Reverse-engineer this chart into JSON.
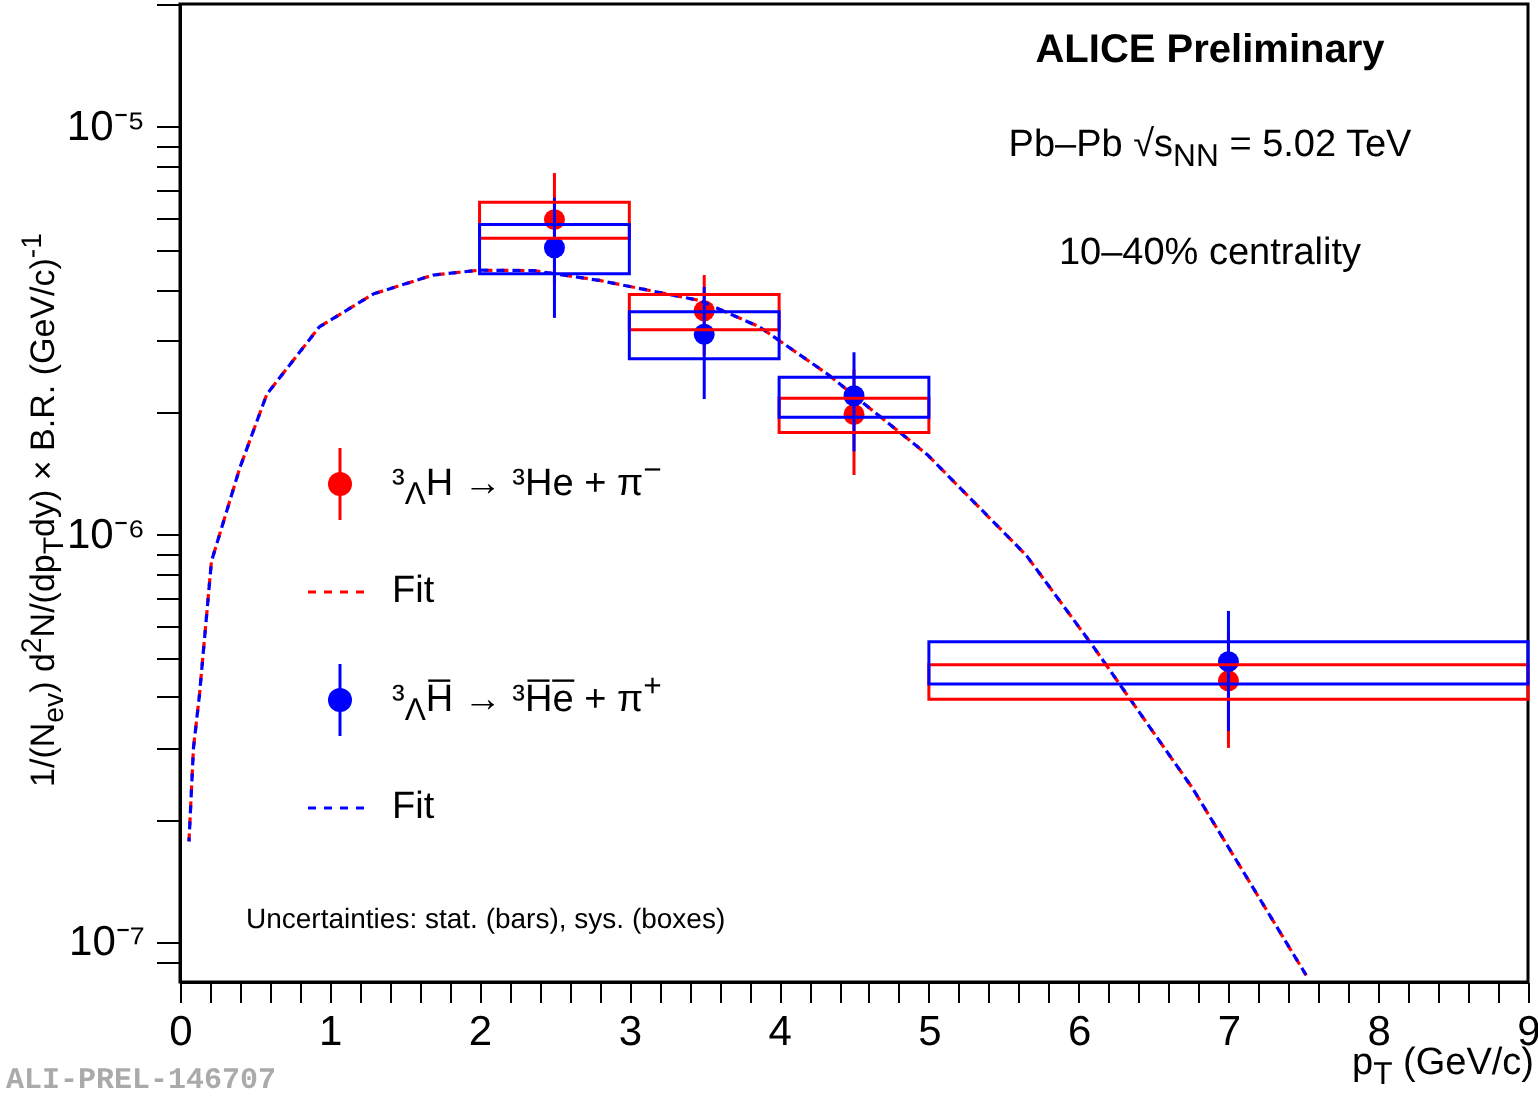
{
  "chart_data": {
    "type": "scatter",
    "xlabel": "p$_{T}$ (GeV/c)",
    "ylabel": "1/(N$_{ev}$) d$^{2}$N/(dp$_{T}$dy) × B.R. (GeV/c)$^{-1}$",
    "log": "y",
    "grid": false,
    "legend": "left",
    "xlim": [
      0,
      9
    ],
    "ylim": [
      8e-08,
      2e-05
    ],
    "xticks": [
      0,
      {
        "value": 0.2,
        "label": null
      },
      {
        "value": 0.4,
        "label": null
      },
      {
        "value": 0.6,
        "label": null
      },
      {
        "value": 0.8,
        "label": null
      },
      1,
      {
        "value": 1.2,
        "label": null
      },
      {
        "value": 1.4,
        "label": null
      },
      {
        "value": 1.6,
        "label": null
      },
      {
        "value": 1.8,
        "label": null
      },
      2,
      {
        "value": 2.2,
        "label": null
      },
      {
        "value": 2.4,
        "label": null
      },
      {
        "value": 2.6,
        "label": null
      },
      {
        "value": 2.8,
        "label": null
      },
      3,
      {
        "value": 3.2,
        "label": null
      },
      {
        "value": 3.4,
        "label": null
      },
      {
        "value": 3.6,
        "label": null
      },
      {
        "value": 3.8,
        "label": null
      },
      4,
      {
        "value": 4.2,
        "label": null
      },
      {
        "value": 4.4,
        "label": null
      },
      {
        "value": 4.6,
        "label": null
      },
      {
        "value": 4.8,
        "label": null
      },
      5,
      {
        "value": 5.2,
        "label": null
      },
      {
        "value": 5.4,
        "label": null
      },
      {
        "value": 5.6,
        "label": null
      },
      {
        "value": 5.8,
        "label": null
      },
      6,
      {
        "value": 6.2,
        "label": null
      },
      {
        "value": 6.4,
        "label": null
      },
      {
        "value": 6.6,
        "label": null
      },
      {
        "value": 6.8,
        "label": null
      },
      7,
      {
        "value": 7.2,
        "label": null
      },
      {
        "value": 7.4,
        "label": null
      },
      {
        "value": 7.6,
        "label": null
      },
      {
        "value": 7.8,
        "label": null
      },
      8,
      {
        "value": 8.2,
        "label": null
      },
      {
        "value": 8.4,
        "label": null
      },
      {
        "value": 8.6,
        "label": null
      },
      {
        "value": 8.8,
        "label": null
      },
      9
    ],
    "yticks": [
      {
        "value": 9e-08,
        "label": null
      },
      {
        "value": 1e-07,
        "label": "10⁻⁷"
      },
      {
        "value": 2e-07,
        "label": null
      },
      {
        "value": 3e-07,
        "label": null
      },
      {
        "value": 4e-07,
        "label": null
      },
      {
        "value": 5e-07,
        "label": null
      },
      {
        "value": 6e-07,
        "label": null
      },
      {
        "value": 7e-07,
        "label": null
      },
      {
        "value": 8e-07,
        "label": null
      },
      {
        "value": 9e-07,
        "label": null
      },
      {
        "value": 1e-06,
        "label": "10⁻⁶"
      },
      {
        "value": 2e-06,
        "label": null
      },
      {
        "value": 3e-06,
        "label": null
      },
      {
        "value": 4e-06,
        "label": null
      },
      {
        "value": 5e-06,
        "label": null
      },
      {
        "value": 6e-06,
        "label": null
      },
      {
        "value": 7e-06,
        "label": null
      },
      {
        "value": 8e-06,
        "label": null
      },
      {
        "value": 9e-06,
        "label": null
      },
      {
        "value": 1e-05,
        "label": "10⁻⁵"
      },
      {
        "value": 2e-05,
        "label": null
      }
    ],
    "annotations": [
      "ALICE Preliminary",
      "Pb–Pb √s$_{NN}$ = 5.02 TeV",
      "10–40% centrality",
      "Uncertainties: stat. (bars), sys. (boxes)",
      "ALI-PREL-146707"
    ],
    "series": [
      {
        "name": "³$_{Λ}$H → ³He + π$^{−}$",
        "marker": "circle",
        "color": "#ff0000",
        "x": [
          2.5,
          3.5,
          4.5,
          7
        ],
        "values": [
          5.92e-06,
          3.54e-06,
          1.97e-06,
          4.38e-07
        ],
        "errors": [
          [
            4.1e-06,
            7.7e-06
          ],
          [
            2.75e-06,
            4.33e-06
          ],
          [
            1.4e-06,
            2.54e-06
          ],
          [
            3e-07,
            5.8e-07
          ]
        ]
      },
      {
        "name": "Fit",
        "type": "line",
        "color": "#ff0000",
        "line_style": "dashed",
        "x": [
          0.06,
          0.09,
          0.13,
          0.21,
          0.4,
          0.58,
          0.93,
          1.29,
          1.69,
          2.0,
          2.36,
          2.8,
          3.47,
          3.87,
          4.32,
          4.99,
          5.65,
          6.1,
          6.76,
          7.52
        ],
        "values": [
          1.77e-07,
          3e-07,
          4.05e-07,
          8.6e-07,
          1.46e-06,
          2.21e-06,
          3.23e-06,
          3.89e-06,
          4.33e-06,
          4.45e-06,
          4.44e-06,
          4.2e-06,
          3.75e-06,
          3.23e-06,
          2.48e-06,
          1.57e-06,
          8.9e-07,
          5.3e-07,
          2.39e-07,
          8.3e-08
        ]
      },
      {
        "name": "³$_{Λ}$H̅ → ³H̅e̅ + π$^{+}$",
        "marker": "circle",
        "color": "#0000ff",
        "x": [
          2.5,
          3.5,
          4.5,
          7
        ],
        "values": [
          5.05e-06,
          3.1e-06,
          2.19e-06,
          4.88e-07
        ],
        "errors": [
          [
            3.4e-06,
            6.7e-06
          ],
          [
            2.15e-06,
            4.05e-06
          ],
          [
            1.6e-06,
            2.8e-06
          ],
          [
            3.3e-07,
            6.5e-07
          ]
        ]
      },
      {
        "name": "Fit",
        "type": "line",
        "color": "#0000ff",
        "line_style": "dashed",
        "x": [
          0.06,
          0.09,
          0.13,
          0.21,
          0.4,
          0.58,
          0.93,
          1.29,
          1.69,
          2.0,
          2.36,
          2.8,
          3.47,
          3.87,
          4.32,
          4.99,
          5.65,
          6.1,
          6.76,
          7.52
        ],
        "values": [
          1.77e-07,
          3e-07,
          4.05e-07,
          8.6e-07,
          1.46e-06,
          2.21e-06,
          3.23e-06,
          3.89e-06,
          4.33e-06,
          4.45e-06,
          4.44e-06,
          4.2e-06,
          3.75e-06,
          3.23e-06,
          2.48e-06,
          1.57e-06,
          8.9e-07,
          5.3e-07,
          2.39e-07,
          8.3e-08
        ]
      },
      {
        "type": "bar",
        "color": "#ff0000",
        "x": [
          2.5,
          3.5,
          4.5,
          7
        ],
        "base": [
          5.33e-06,
          3.18e-06,
          1.78e-06,
          3.95e-07
        ],
        "values": [
          1.2e-06,
          7e-07,
          3.8e-07,
          8.5e-08
        ]
      },
      {
        "type": "bar",
        "color": "#0000ff",
        "x": [
          2.5,
          3.5,
          4.5,
          7
        ],
        "base": [
          4.36e-06,
          2.7e-06,
          1.94e-06,
          4.3e-07
        ],
        "values": [
          1.4e-06,
          8.2e-07,
          4.9e-07,
          1.16e-07
        ]
      }
    ]
  }
}
